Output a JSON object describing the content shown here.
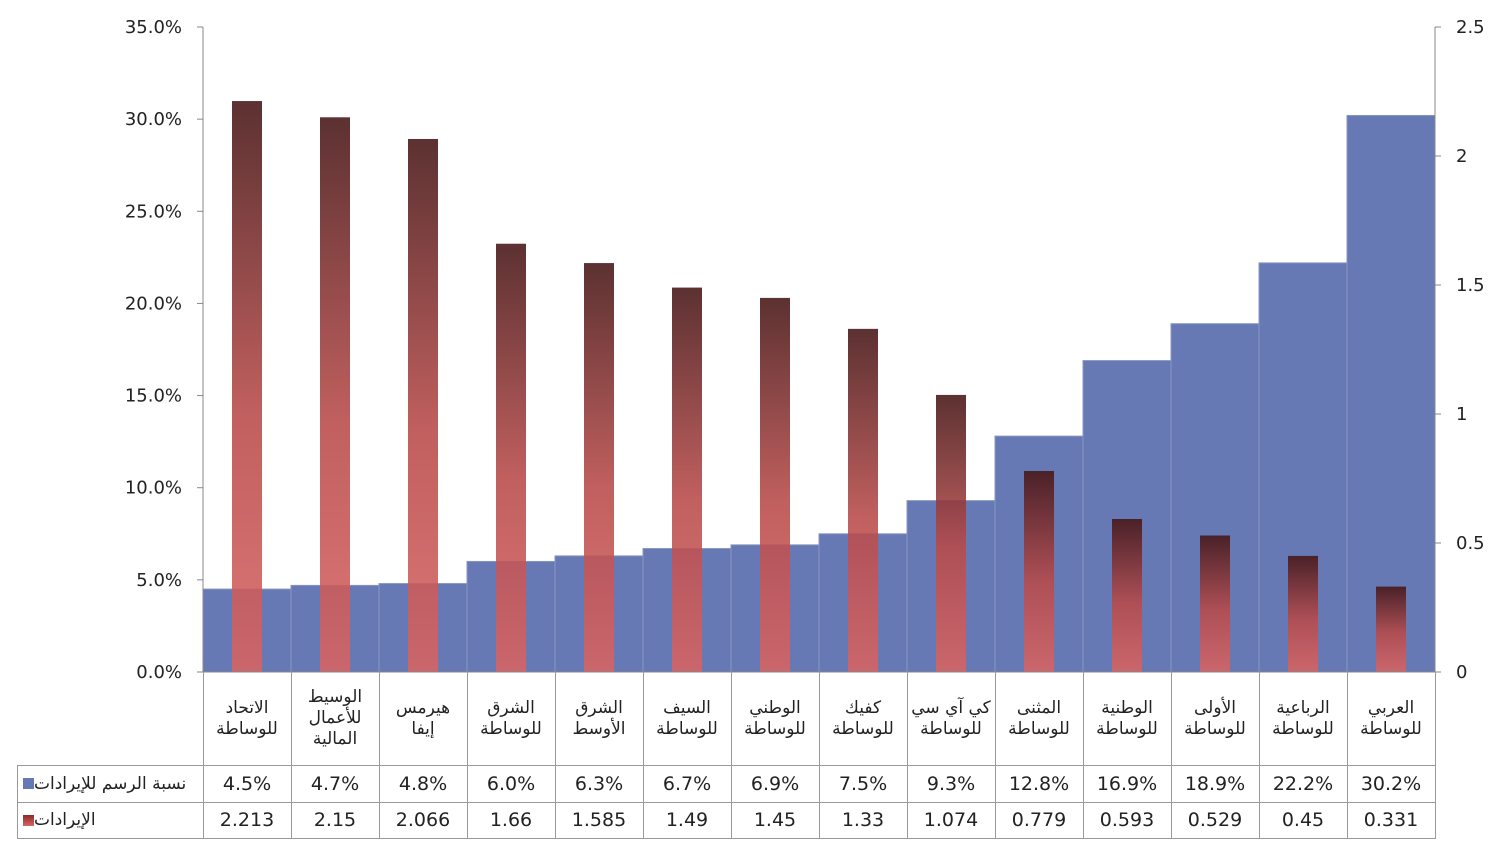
{
  "chart_data": {
    "type": "bar",
    "categories": [
      "الاتحاد\nللوساطة",
      "الوسيط\nللأعمال\nالمالية",
      "هيرمس\nإيفا",
      "الشرق\nللوساطة",
      "الشرق\nالأوسط",
      "السيف\nللوساطة",
      "الوطني\nللوساطة",
      "كفيك\nللوساطة",
      "كي آي سي\nللوساطة",
      "المثنى\nللوساطة",
      "الوطنية\nللوساطة",
      "الأولى\nللوساطة",
      "الرباعية\nللوساطة",
      "العربي\nللوساطة"
    ],
    "series": [
      {
        "name": "نسبة الرسم للإيرادات",
        "axis": "left",
        "color": "#6679b4",
        "values": [
          4.5,
          4.7,
          4.8,
          6.0,
          6.3,
          6.7,
          6.9,
          7.5,
          9.3,
          12.8,
          16.9,
          18.9,
          22.2,
          30.2
        ],
        "labels": [
          "4.5%",
          "4.7%",
          "4.8%",
          "6.0%",
          "6.3%",
          "6.7%",
          "6.9%",
          "7.5%",
          "9.3%",
          "12.8%",
          "16.9%",
          "18.9%",
          "22.2%",
          "30.2%"
        ]
      },
      {
        "name": "الإيرادات",
        "axis": "right",
        "color": "#c0504d",
        "values": [
          2.213,
          2.15,
          2.066,
          1.66,
          1.585,
          1.49,
          1.45,
          1.33,
          1.074,
          0.779,
          0.593,
          0.529,
          0.45,
          0.331
        ],
        "labels": [
          "2.213",
          "2.15",
          "2.066",
          "1.66",
          "1.585",
          "1.49",
          "1.45",
          "1.33",
          "1.074",
          "0.779",
          "0.593",
          "0.529",
          "0.45",
          "0.331"
        ]
      }
    ],
    "y_left": {
      "min": 0,
      "max": 35,
      "ticks": [
        "0.0%",
        "5.0%",
        "10.0%",
        "15.0%",
        "20.0%",
        "25.0%",
        "30.0%",
        "35.0%"
      ]
    },
    "y_right": {
      "min": 0,
      "max": 2.5,
      "ticks": [
        "0",
        "0.5",
        "1",
        "1.5",
        "2",
        "2.5"
      ]
    },
    "legend": "data-table-left",
    "grid": false,
    "title": ""
  }
}
